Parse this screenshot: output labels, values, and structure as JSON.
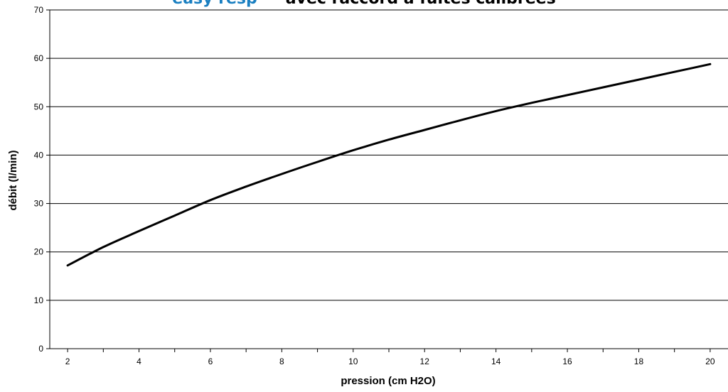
{
  "chart_data": {
    "type": "line",
    "title_brand": "easy resp",
    "title": "avec raccord à fuites calibrées",
    "xlabel": "pression (cm H2O)",
    "ylabel": "débit (l/min)",
    "xlim": [
      1.5,
      20.5
    ],
    "ylim": [
      0,
      70
    ],
    "x_ticks": [
      2,
      4,
      6,
      8,
      10,
      12,
      14,
      16,
      18,
      20
    ],
    "y_ticks": [
      0,
      10,
      20,
      30,
      40,
      50,
      60,
      70
    ],
    "grid": "horizontal",
    "series": [
      {
        "color": "#000000",
        "x": [
          2,
          3,
          4,
          5,
          6,
          7,
          8,
          9,
          10,
          11,
          12,
          13,
          14,
          15,
          16,
          17,
          18,
          19,
          20
        ],
        "y": [
          17.2,
          21.0,
          24.3,
          27.5,
          30.7,
          33.5,
          36.1,
          38.6,
          41.0,
          43.2,
          45.2,
          47.2,
          49.1,
          50.8,
          52.4,
          54.0,
          55.6,
          57.2,
          58.8
        ]
      }
    ]
  }
}
